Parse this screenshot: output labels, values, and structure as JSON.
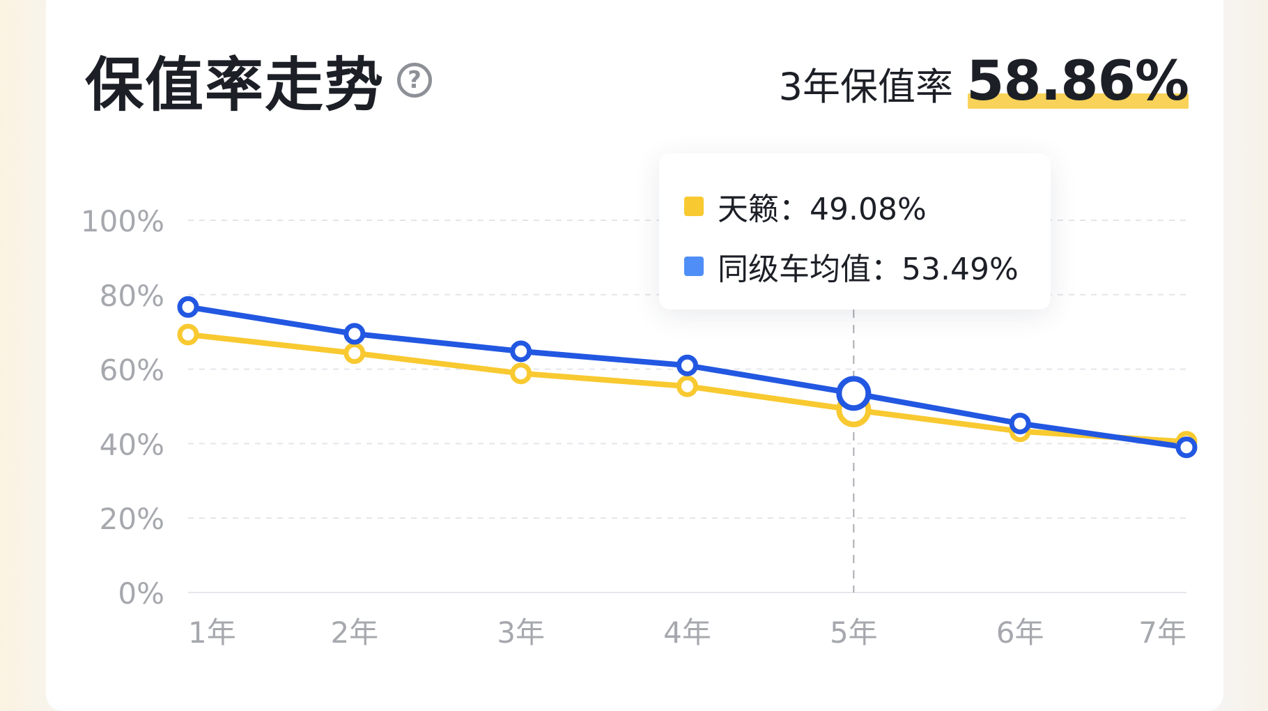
{
  "header": {
    "title": "保值率走势",
    "help_icon": "question-circle-icon",
    "summary_label": "3年保值率",
    "summary_value": "58.86%"
  },
  "tooltip": {
    "items": [
      {
        "label": "天籁：49.08%",
        "color": "#f8c930"
      },
      {
        "label": "同级车均值：53.49%",
        "color": "#4f8ef7"
      }
    ]
  },
  "chart_data": {
    "type": "line",
    "categories": [
      "1年",
      "2年",
      "3年",
      "4年",
      "5年",
      "6年",
      "7年"
    ],
    "yticks": [
      "0%",
      "20%",
      "40%",
      "60%",
      "80%",
      "100%"
    ],
    "ylim": [
      0,
      100
    ],
    "grid": true,
    "highlighted_category": "5年",
    "series": [
      {
        "name": "天籁",
        "color": "#f8c930",
        "values": [
          69.3,
          64.3,
          58.86,
          55.4,
          49.08,
          43.3,
          40.5
        ]
      },
      {
        "name": "同级车均值",
        "color": "#2257e1",
        "values": [
          76.7,
          69.5,
          64.8,
          61.0,
          53.49,
          45.4,
          39.0
        ]
      }
    ]
  }
}
